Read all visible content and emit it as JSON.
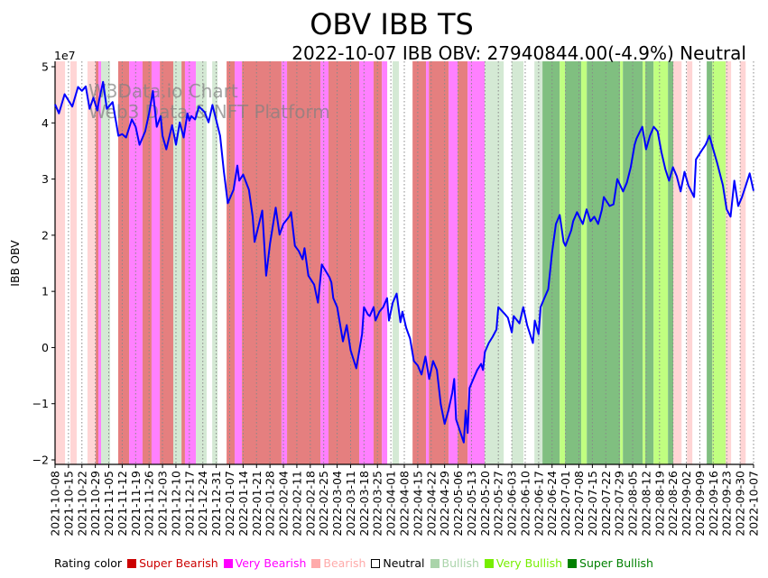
{
  "chart_data": {
    "type": "line",
    "title": "OBV IBB TS",
    "subtitle": "2022-10-07 IBB OBV: 27940844.00(-4.9%) Neutral",
    "ylabel": "IBB OBV",
    "y_offset_label": "1e7",
    "y_scale": 10000000,
    "ylim": [
      -2.05,
      5.05
    ],
    "yticks": [
      -2,
      -1,
      0,
      1,
      2,
      3,
      4,
      5
    ],
    "xlim_days": [
      0,
      364
    ],
    "x_start_date": "2021-10-08",
    "x_tick_step_days": 7,
    "xtick_labels": [
      "2021-10-08",
      "2021-10-15",
      "2021-10-22",
      "2021-10-29",
      "2021-11-05",
      "2021-11-12",
      "2021-11-19",
      "2021-11-26",
      "2021-12-03",
      "2021-12-10",
      "2021-12-17",
      "2021-12-24",
      "2021-12-31",
      "2022-01-07",
      "2022-01-14",
      "2022-01-21",
      "2022-01-28",
      "2022-02-04",
      "2022-02-11",
      "2022-02-18",
      "2022-02-25",
      "2022-03-04",
      "2022-03-11",
      "2022-03-18",
      "2022-03-25",
      "2022-04-01",
      "2022-04-08",
      "2022-04-15",
      "2022-04-22",
      "2022-04-29",
      "2022-05-06",
      "2022-05-13",
      "2022-05-20",
      "2022-05-27",
      "2022-06-03",
      "2022-06-10",
      "2022-06-17",
      "2022-06-24",
      "2022-07-01",
      "2022-07-08",
      "2022-07-15",
      "2022-07-22",
      "2022-07-29",
      "2022-08-05",
      "2022-08-12",
      "2022-08-19",
      "2022-08-26",
      "2022-09-02",
      "2022-09-09",
      "2022-09-16",
      "2022-09-23",
      "2022-09-30",
      "2022-10-07"
    ],
    "grid": "vertical dotted at x ticks",
    "watermark": [
      "W3Data.io Chart",
      "Web3 Data & NFT Platform"
    ],
    "series": [
      {
        "name": "IBB OBV",
        "color": "#0000ff",
        "x_days": [
          0,
          2,
          5,
          9,
          12,
          14,
          16,
          18,
          20,
          22,
          23,
          25,
          27,
          30,
          33,
          35,
          37,
          40,
          42,
          44,
          47,
          49,
          51,
          53,
          55,
          56,
          58,
          61,
          63,
          65,
          67,
          69,
          70,
          71,
          73,
          75,
          78,
          80,
          82,
          86,
          88,
          90,
          93,
          95,
          96,
          98,
          101,
          103,
          104,
          108,
          110,
          112,
          115,
          117,
          119,
          122,
          123,
          125,
          127,
          129,
          130,
          132,
          135,
          137,
          139,
          143,
          144,
          145,
          147,
          150,
          152,
          154,
          157,
          160,
          161,
          163,
          164,
          166,
          167,
          169,
          171,
          173,
          174,
          176,
          178,
          180,
          181,
          183,
          185,
          187,
          189,
          191,
          193,
          195,
          197,
          199,
          201,
          203,
          205,
          207,
          208,
          209,
          211,
          213,
          214,
          215,
          216,
          218,
          220,
          222,
          223,
          224,
          226,
          228,
          230,
          231,
          234,
          236,
          238,
          239,
          242,
          244,
          246,
          249,
          250,
          252,
          253,
          255,
          257,
          259,
          261,
          263,
          265,
          266,
          269,
          270,
          272,
          275,
          277,
          279,
          281,
          283,
          285,
          286,
          289,
          291,
          293,
          296,
          298,
          300,
          302,
          303,
          306,
          308,
          310,
          312,
          314,
          316,
          318,
          320,
          322,
          324,
          326,
          328,
          330,
          333,
          334,
          337,
          339,
          341,
          343,
          345,
          348,
          350,
          352,
          354,
          356,
          358,
          360,
          362,
          364
        ],
        "values": [
          4.33,
          4.17,
          4.51,
          4.29,
          4.64,
          4.57,
          4.65,
          4.25,
          4.45,
          4.22,
          4.41,
          4.73,
          4.25,
          4.37,
          3.77,
          3.8,
          3.74,
          4.06,
          3.93,
          3.61,
          3.85,
          4.17,
          4.57,
          3.93,
          4.12,
          3.77,
          3.53,
          3.96,
          3.61,
          4.01,
          3.74,
          4.17,
          4.04,
          4.12,
          4.06,
          4.29,
          4.19,
          4.01,
          4.32,
          3.77,
          3.13,
          2.57,
          2.81,
          3.24,
          2.97,
          3.08,
          2.81,
          2.33,
          1.88,
          2.44,
          1.28,
          1.85,
          2.49,
          2.01,
          2.2,
          2.33,
          2.41,
          1.81,
          1.72,
          1.57,
          1.77,
          1.28,
          1.12,
          0.8,
          1.48,
          1.25,
          1.16,
          0.88,
          0.72,
          0.11,
          0.4,
          -0.05,
          -0.37,
          0.24,
          0.72,
          0.59,
          0.56,
          0.72,
          0.48,
          0.64,
          0.72,
          0.88,
          0.48,
          0.8,
          0.96,
          0.45,
          0.64,
          0.35,
          0.16,
          -0.24,
          -0.32,
          -0.48,
          -0.16,
          -0.56,
          -0.24,
          -0.4,
          -1.01,
          -1.36,
          -1.12,
          -0.8,
          -0.56,
          -1.28,
          -1.49,
          -1.69,
          -1.12,
          -1.52,
          -0.72,
          -0.56,
          -0.4,
          -0.29,
          -0.4,
          -0.08,
          0.08,
          0.19,
          0.32,
          0.72,
          0.61,
          0.53,
          0.27,
          0.56,
          0.43,
          0.72,
          0.4,
          0.08,
          0.48,
          0.24,
          0.72,
          0.88,
          1.04,
          1.69,
          2.2,
          2.36,
          1.88,
          1.81,
          2.09,
          2.25,
          2.41,
          2.2,
          2.46,
          2.25,
          2.33,
          2.2,
          2.46,
          2.68,
          2.52,
          2.55,
          3.0,
          2.78,
          2.94,
          3.21,
          3.61,
          3.72,
          3.93,
          3.53,
          3.77,
          3.93,
          3.85,
          3.48,
          3.18,
          2.97,
          3.21,
          3.05,
          2.78,
          3.13,
          2.89,
          2.68,
          3.35,
          3.51,
          3.61,
          3.77,
          3.53,
          3.29,
          2.89,
          2.46,
          2.33,
          2.97,
          2.52,
          2.68,
          2.89,
          3.1,
          2.79
        ]
      }
    ],
    "rating_bands": [
      [
        0,
        5.2,
        "B"
      ],
      [
        8,
        11.3,
        "B"
      ],
      [
        16.9,
        21.2,
        "B"
      ],
      [
        21.2,
        22.6,
        "SB"
      ],
      [
        22.6,
        24,
        "VB"
      ],
      [
        24,
        28.7,
        "Bu"
      ],
      [
        32.9,
        38.6,
        "SB"
      ],
      [
        38.6,
        45.6,
        "VB"
      ],
      [
        45.6,
        50.3,
        "SB"
      ],
      [
        50.3,
        54.6,
        "VB"
      ],
      [
        54.6,
        61.6,
        "SB"
      ],
      [
        61.6,
        65.9,
        "Bu"
      ],
      [
        65.9,
        67.7,
        "SB"
      ],
      [
        67.7,
        73.4,
        "VB"
      ],
      [
        73.4,
        79,
        "Bu"
      ],
      [
        81.9,
        84.7,
        "Bu"
      ],
      [
        89.4,
        93.6,
        "SB"
      ],
      [
        93.6,
        97.4,
        "VB"
      ],
      [
        97.4,
        118,
        "SB"
      ],
      [
        118,
        120.9,
        "VB"
      ],
      [
        120.9,
        138.3,
        "SB"
      ],
      [
        138.3,
        142.5,
        "VB"
      ],
      [
        142.5,
        158.5,
        "SB"
      ],
      [
        158.5,
        166,
        "VB"
      ],
      [
        166,
        170.3,
        "SB"
      ],
      [
        170.3,
        173.1,
        "VB"
      ],
      [
        175.9,
        179.2,
        "Bu"
      ],
      [
        186.3,
        193.3,
        "SB"
      ],
      [
        193.3,
        194.8,
        "VB"
      ],
      [
        194.8,
        205.1,
        "SB"
      ],
      [
        205.1,
        209.8,
        "VB"
      ],
      [
        209.8,
        215,
        "SB"
      ],
      [
        215,
        223.9,
        "VB"
      ],
      [
        223.9,
        233.8,
        "Bu"
      ],
      [
        238,
        244.1,
        "Bu"
      ],
      [
        249.8,
        254,
        "Bu"
      ],
      [
        254,
        263,
        "SBu"
      ],
      [
        263,
        265.8,
        "VBu"
      ],
      [
        265.8,
        274.2,
        "SBu"
      ],
      [
        274.2,
        277.1,
        "VBu"
      ],
      [
        277.1,
        294.5,
        "SBu"
      ],
      [
        294.5,
        295.9,
        "VBu"
      ],
      [
        295.9,
        306.2,
        "SBu"
      ],
      [
        306.2,
        307.6,
        "VBu"
      ],
      [
        307.6,
        311.9,
        "SBu"
      ],
      [
        311.9,
        319.4,
        "VBu"
      ],
      [
        319.4,
        322.2,
        "SBu"
      ],
      [
        322.2,
        326.5,
        "B"
      ],
      [
        329.3,
        332.1,
        "B"
      ],
      [
        339.6,
        342.5,
        "SBu"
      ],
      [
        342.5,
        349.5,
        "VBu"
      ],
      [
        349.5,
        352.3,
        "B"
      ],
      [
        357,
        359.9,
        "B"
      ]
    ],
    "band_colors": {
      "SB": "#e57f7f",
      "VB": "#ff80ff",
      "B": "#ffd5d5",
      "Bu": "#d4e9d4",
      "VBu": "#c0ff80",
      "SBu": "#80bf80"
    },
    "legend": {
      "title": "Rating color",
      "placement": "bottom",
      "items": [
        {
          "label": "Super Bearish",
          "color": "#cc0000"
        },
        {
          "label": "Very Bearish",
          "color": "#ff00ff"
        },
        {
          "label": "Bearish",
          "color": "#ffaaaa"
        },
        {
          "label": "Neutral",
          "color": "#000000",
          "hollow": true
        },
        {
          "label": "Bullish",
          "color": "#aad4aa"
        },
        {
          "label": "Very Bullish",
          "color": "#77ee00"
        },
        {
          "label": "Super Bullish",
          "color": "#008000"
        }
      ]
    }
  }
}
